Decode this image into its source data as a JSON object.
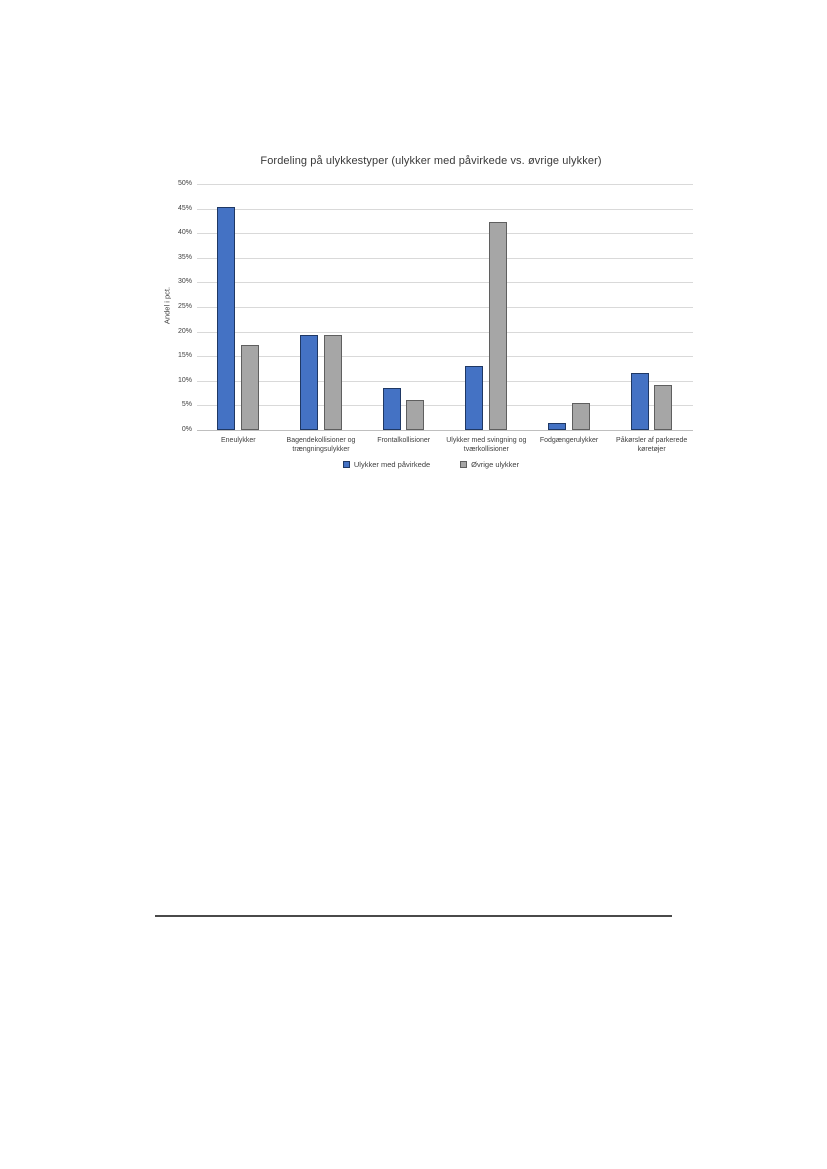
{
  "chart_data": {
    "type": "bar",
    "title": "Fordeling på ulykkestyper (ulykker med påvirkede vs. øvrige ulykker)",
    "xlabel": "",
    "ylabel": "Andel i pct.",
    "ylim": [
      0,
      50
    ],
    "ytick_step": 5,
    "ytick_labels": [
      "0%",
      "5%",
      "10%",
      "15%",
      "20%",
      "25%",
      "30%",
      "35%",
      "40%",
      "45%",
      "50%"
    ],
    "grid": true,
    "legend_position": "bottom",
    "categories": [
      "Eneulykker",
      "Bagendekollisioner og trængningsulykker",
      "Frontalkollisioner",
      "Ulykker med svingning og tværkollisioner",
      "Fodgængerulykker",
      "Påkørsler af parkerede køretøjer"
    ],
    "series": [
      {
        "name": "Ulykker med påvirkede",
        "color": "#4472C4",
        "border_color": "#1F3864",
        "values": [
          45.4,
          19.4,
          8.6,
          13.0,
          1.4,
          11.6
        ]
      },
      {
        "name": "Øvrige ulykker",
        "color": "#A6A6A6",
        "border_color": "#5F5F5F",
        "values": [
          17.3,
          19.4,
          6.0,
          42.2,
          5.5,
          9.2
        ]
      }
    ]
  }
}
